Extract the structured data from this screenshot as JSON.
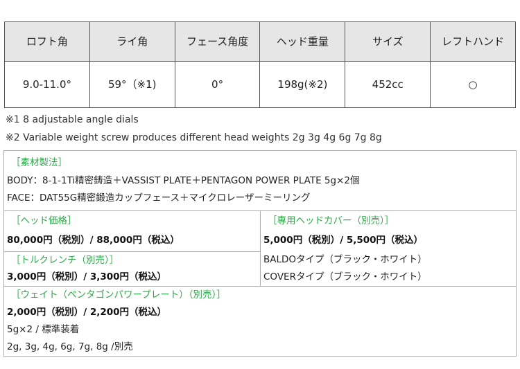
{
  "spec_table": {
    "headers": [
      "ロフト角",
      "ライ角",
      "フェース角度",
      "ヘッド重量",
      "サイズ",
      "レフトハンド"
    ],
    "values": [
      "9.0-11.0°",
      "59°（※1)",
      "0°",
      "198g(※2)",
      "452cc",
      "○"
    ]
  },
  "notes": [
    "※1  8 adjustable angle dials",
    "※2 Variable weight screw produces different head weights 2g 3g 4g 6g 7g 8g"
  ],
  "material": {
    "title": "［素材製法］",
    "body": "BODY：8-1-1Ti精密鋳造＋VASSIST PLATE＋PENTAGON POWER PLATE 5g×2個",
    "face": "FACE：DAT55G精密鍛造カップフェース＋マイクロレーザーミーリング"
  },
  "head_price": {
    "title": "［ヘッド価格］",
    "price": "80,000円（税別）/ 88,000円（税込）"
  },
  "torque_wrench": {
    "title": "［トルクレンチ（別売）］",
    "price": "3,000円（税別）/ 3,300円（税込）"
  },
  "head_cover": {
    "title": "［専用ヘッドカバー（別売）］",
    "price": "5,000円（税別）/ 5,500円（税込）",
    "types": [
      "BALDOタイプ（ブラック・ホワイト）",
      "COVERタイプ（ブラック・ホワイト）"
    ]
  },
  "weight": {
    "title": "［ウェイト（ペンタゴンパワープレート）（別売）］",
    "price": "2,000円（税別）/ 2,200円（税込）",
    "standard": "5g×2 / 標準装着",
    "options": "2g, 3g, 4g, 6g, 7g, 8g /別売"
  }
}
